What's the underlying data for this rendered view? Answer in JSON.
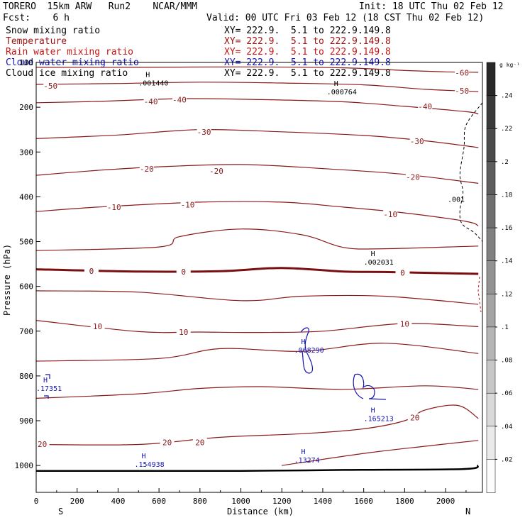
{
  "header": {
    "model": "TORERO",
    "resolution": "15km ARW",
    "run": "Run2",
    "org": "NCAR/MMM",
    "init": "Init: 18 UTC Thu 02 Feb 12",
    "fcst_label": "Fcst:",
    "fcst_value": "6 h",
    "valid": "Valid: 00 UTC Fri 03 Feb 12 (18 CST Thu 02 Feb 12)"
  },
  "fields": [
    {
      "name": "Snow mixing ratio",
      "color": "#000000",
      "xy": "XY= 222.9.  5.1 to 222.9.149.8"
    },
    {
      "name": "Temperature",
      "color": "#a01414",
      "xy": "XY= 222.9.  5.1 to 222.9.149.8"
    },
    {
      "name": "Rain water mixing ratio",
      "color": "#c81414",
      "xy": "XY= 222.9.  5.1 to 222.9.149.8"
    },
    {
      "name": "Cloud water mixing ratio",
      "color": "#1414b4",
      "xy": "XY= 222.9.  5.1 to 222.9.149.8"
    },
    {
      "name": "Cloud ice mixing ratio",
      "color": "#000000",
      "xy": "XY= 222.9.  5.1 to 222.9.149.8"
    }
  ],
  "chart_data": {
    "type": "line",
    "xlabel": "Distance (km)",
    "ylabel": "Pressure (hPa)",
    "xlim": [
      0,
      2180
    ],
    "ylim": [
      1060,
      100
    ],
    "xticks": [
      "0",
      "200",
      "400",
      "600",
      "800",
      "1000",
      "1200",
      "1400",
      "1600",
      "1800",
      "2000"
    ],
    "xtick_values": [
      0,
      200,
      400,
      600,
      800,
      1000,
      1200,
      1400,
      1600,
      1800,
      2000
    ],
    "yticks": [
      "100",
      "200",
      "300",
      "400",
      "500",
      "600",
      "700",
      "800",
      "900",
      "1000"
    ],
    "ytick_values": [
      100,
      200,
      300,
      400,
      500,
      600,
      700,
      800,
      900,
      1000
    ],
    "left_end": "S",
    "right_end": "N",
    "colorbar": {
      "unit": "g kg⁻¹",
      "labels": [
        ".24",
        ".22",
        ".2",
        ".18",
        ".16",
        ".14",
        ".12",
        ".1",
        ".08",
        ".06",
        ".04",
        ".02"
      ]
    },
    "temperature_contours": [
      {
        "label": "-60",
        "color": "#8b1a1a",
        "points": [
          [
            0,
            111
          ],
          [
            500,
            111
          ],
          [
            1000,
            110
          ],
          [
            1500,
            112
          ],
          [
            1800,
            118
          ],
          [
            2000,
            121
          ],
          [
            2160,
            122
          ]
        ],
        "labels": [
          [
            2080,
            123
          ]
        ]
      },
      {
        "label": "-50",
        "color": "#8b1a1a",
        "points": [
          [
            0,
            149
          ],
          [
            400,
            147
          ],
          [
            800,
            144
          ],
          [
            1200,
            146
          ],
          [
            1600,
            150
          ],
          [
            1900,
            160
          ],
          [
            2160,
            165
          ]
        ],
        "labels": [
          [
            70,
            152
          ],
          [
            2080,
            163
          ]
        ]
      },
      {
        "label": "-40",
        "color": "#8b1a1a",
        "points": [
          [
            0,
            190
          ],
          [
            300,
            187
          ],
          [
            700,
            181
          ],
          [
            1100,
            183
          ],
          [
            1500,
            188
          ],
          [
            1800,
            198
          ],
          [
            2100,
            210
          ],
          [
            2160,
            215
          ]
        ],
        "labels": [
          [
            560,
            187
          ],
          [
            700,
            183
          ],
          [
            1900,
            198
          ]
        ]
      },
      {
        "label": "-30",
        "color": "#8b1a1a",
        "points": [
          [
            0,
            270
          ],
          [
            400,
            262
          ],
          [
            800,
            250
          ],
          [
            1200,
            255
          ],
          [
            1600,
            263
          ],
          [
            1900,
            275
          ],
          [
            2160,
            290
          ]
        ],
        "labels": [
          [
            820,
            255
          ],
          [
            1860,
            276
          ]
        ]
      },
      {
        "label": "-20",
        "color": "#8b1a1a",
        "points": [
          [
            0,
            352
          ],
          [
            300,
            341
          ],
          [
            600,
            333
          ],
          [
            1000,
            328
          ],
          [
            1400,
            337
          ],
          [
            1800,
            350
          ],
          [
            2160,
            370
          ]
        ],
        "labels": [
          [
            540,
            338
          ],
          [
            880,
            342
          ],
          [
            1840,
            356
          ]
        ]
      },
      {
        "label": "-10",
        "color": "#8b1a1a",
        "points": [
          [
            0,
            433
          ],
          [
            300,
            423
          ],
          [
            800,
            412
          ],
          [
            1200,
            412
          ],
          [
            1500,
            423
          ],
          [
            1800,
            436
          ],
          [
            2100,
            455
          ],
          [
            2160,
            465
          ]
        ],
        "labels": [
          [
            380,
            423
          ],
          [
            740,
            418
          ],
          [
            1730,
            439
          ]
        ]
      },
      {
        "label": "",
        "color": "#8b1a1a",
        "points": [
          [
            0,
            520
          ],
          [
            600,
            512
          ],
          [
            700,
            489
          ],
          [
            1000,
            472
          ],
          [
            1300,
            485
          ],
          [
            1500,
            513
          ],
          [
            1700,
            516
          ],
          [
            2160,
            510
          ]
        ],
        "labels": []
      },
      {
        "label": "0",
        "color": "#7a0f0f",
        "width": 3,
        "points": [
          [
            0,
            562
          ],
          [
            500,
            567
          ],
          [
            900,
            566
          ],
          [
            1200,
            559
          ],
          [
            1500,
            567
          ],
          [
            1700,
            568
          ],
          [
            2160,
            572
          ]
        ],
        "labels": [
          [
            270,
            566
          ],
          [
            720,
            567
          ],
          [
            1790,
            570
          ]
        ]
      },
      {
        "label": "",
        "color": "#8b1a1a",
        "points": [
          [
            0,
            610
          ],
          [
            500,
            613
          ],
          [
            1000,
            632
          ],
          [
            1300,
            622
          ],
          [
            1700,
            622
          ],
          [
            2160,
            640
          ]
        ],
        "labels": []
      },
      {
        "label": "10",
        "color": "#8b1a1a",
        "points": [
          [
            0,
            676
          ],
          [
            500,
            701
          ],
          [
            800,
            702
          ],
          [
            1100,
            703
          ],
          [
            1400,
            700
          ],
          [
            1800,
            683
          ],
          [
            2160,
            690
          ]
        ],
        "labels": [
          [
            300,
            689
          ],
          [
            720,
            702
          ],
          [
            1800,
            684
          ]
        ]
      },
      {
        "label": "",
        "color": "#8b1a1a",
        "points": [
          [
            0,
            767
          ],
          [
            600,
            761
          ],
          [
            900,
            739
          ],
          [
            1300,
            745
          ],
          [
            1700,
            727
          ],
          [
            2160,
            750
          ]
        ],
        "labels": []
      },
      {
        "label": "",
        "color": "#8b1a1a",
        "points": [
          [
            0,
            850
          ],
          [
            500,
            840
          ],
          [
            800,
            828
          ],
          [
            1100,
            824
          ],
          [
            1500,
            830
          ],
          [
            1900,
            822
          ],
          [
            2160,
            830
          ]
        ],
        "labels": []
      },
      {
        "label": "20",
        "color": "#8b1a1a",
        "points": [
          [
            0,
            953
          ],
          [
            500,
            953
          ],
          [
            900,
            937
          ],
          [
            1300,
            929
          ],
          [
            1600,
            918
          ],
          [
            1800,
            900
          ],
          [
            1900,
            876
          ],
          [
            2060,
            866
          ],
          [
            2160,
            895
          ]
        ],
        "labels": [
          [
            30,
            952
          ],
          [
            640,
            948
          ],
          [
            800,
            948
          ],
          [
            1850,
            893
          ]
        ]
      },
      {
        "label": "",
        "color": "#8b1a1a",
        "points": [
          [
            1200,
            1000
          ],
          [
            1600,
            973
          ],
          [
            1900,
            957
          ],
          [
            2160,
            944
          ]
        ],
        "labels": []
      }
    ],
    "ground": {
      "color": "#000000",
      "points": [
        [
          0,
          1012
        ],
        [
          1000,
          1012
        ],
        [
          1500,
          1010
        ],
        [
          2080,
          1008
        ],
        [
          2160,
          1000
        ]
      ]
    },
    "maxima": [
      {
        "text": ".001440",
        "series": "snow",
        "color": "#000000",
        "x": 500,
        "p": 148
      },
      {
        "text": ".000764",
        "series": "snow",
        "color": "#000000",
        "x": 1420,
        "p": 168
      },
      {
        "text": ".002031",
        "series": "snow",
        "color": "#000000",
        "x": 1600,
        "p": 548
      },
      {
        "text": ".068290",
        "series": "rain",
        "color": "#1414b4",
        "x": 1260,
        "p": 745
      },
      {
        "text": ".17351",
        "series": "cloud",
        "color": "#1414b4",
        "x": 0,
        "p": 830
      },
      {
        "text": ".165213",
        "series": "cloud",
        "color": "#1414b4",
        "x": 1600,
        "p": 898
      },
      {
        "text": ".13274",
        "series": "cloud",
        "color": "#1414b4",
        "x": 1260,
        "p": 990
      },
      {
        "text": ".154938",
        "series": "cloud",
        "color": "#1414b4",
        "x": 480,
        "p": 1000
      }
    ],
    "snow_contour_label": ".001"
  }
}
